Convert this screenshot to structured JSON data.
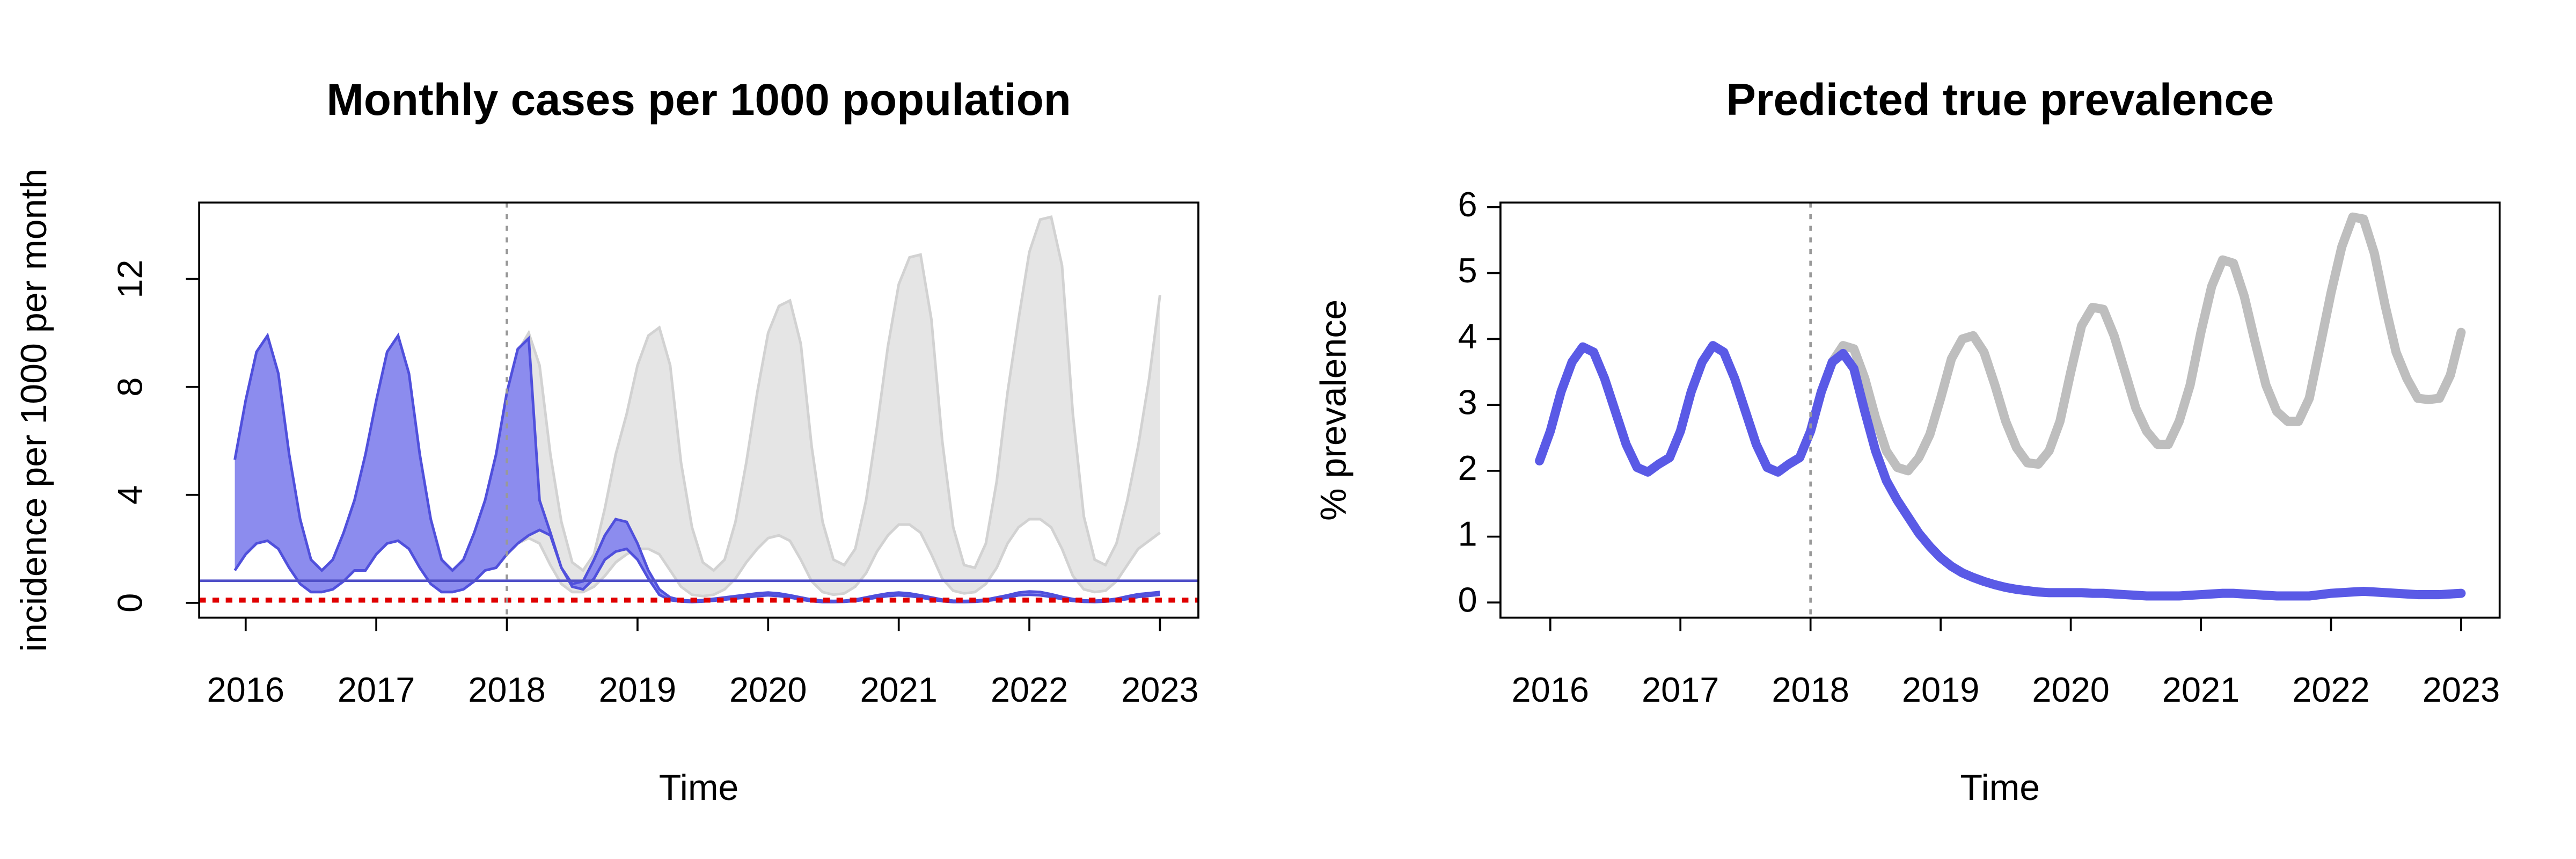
{
  "chart_data": [
    {
      "type": "band",
      "title": "Monthly cases per 1000 population",
      "xlabel": "Time",
      "ylabel": "incidence per 1000 per month",
      "x": [
        2015.917,
        2016,
        2016.083,
        2016.167,
        2016.25,
        2016.333,
        2016.417,
        2016.5,
        2016.583,
        2016.667,
        2016.75,
        2016.833,
        2016.917,
        2017,
        2017.083,
        2017.167,
        2017.25,
        2017.333,
        2017.417,
        2017.5,
        2017.583,
        2017.667,
        2017.75,
        2017.833,
        2017.917,
        2018,
        2018.083,
        2018.167,
        2018.25,
        2018.333,
        2018.417,
        2018.5,
        2018.583,
        2018.667,
        2018.75,
        2018.833,
        2018.917,
        2019,
        2019.083,
        2019.167,
        2019.25,
        2019.333,
        2019.417,
        2019.5,
        2019.583,
        2019.667,
        2019.75,
        2019.833,
        2019.917,
        2020,
        2020.083,
        2020.167,
        2020.25,
        2020.333,
        2020.417,
        2020.5,
        2020.583,
        2020.667,
        2020.75,
        2020.833,
        2020.917,
        2021,
        2021.083,
        2021.167,
        2021.25,
        2021.333,
        2021.417,
        2021.5,
        2021.583,
        2021.667,
        2021.75,
        2021.833,
        2021.917,
        2022,
        2022.083,
        2022.167,
        2022.25,
        2022.333,
        2022.417,
        2022.5,
        2022.583,
        2022.667,
        2022.75,
        2022.833,
        2022.917,
        2023
      ],
      "series": [
        {
          "color": "#e5e5e5",
          "edge_color": "#d2d2d2",
          "upper": [
            null,
            null,
            null,
            null,
            null,
            null,
            null,
            null,
            null,
            null,
            null,
            null,
            null,
            null,
            null,
            null,
            null,
            null,
            null,
            null,
            null,
            null,
            null,
            null,
            5.5,
            7.5,
            9.3,
            10.0,
            8.8,
            5.5,
            3.0,
            1.5,
            1.2,
            1.8,
            3.5,
            5.5,
            7.0,
            8.8,
            9.9,
            10.2,
            8.8,
            5.2,
            2.8,
            1.5,
            1.2,
            1.6,
            3.0,
            5.2,
            7.8,
            10.0,
            11.0,
            11.2,
            9.6,
            5.8,
            3.0,
            1.6,
            1.4,
            2.0,
            3.8,
            6.5,
            9.5,
            11.8,
            12.8,
            12.9,
            10.5,
            6.0,
            2.8,
            1.4,
            1.3,
            2.2,
            4.5,
            7.8,
            10.5,
            13.0,
            14.2,
            14.3,
            12.5,
            7.0,
            3.2,
            1.6,
            1.4,
            2.2,
            3.8,
            5.8,
            8.3,
            11.4
          ],
          "lower": [
            null,
            null,
            null,
            null,
            null,
            null,
            null,
            null,
            null,
            null,
            null,
            null,
            null,
            null,
            null,
            null,
            null,
            null,
            null,
            null,
            null,
            null,
            null,
            null,
            1.3,
            1.8,
            2.2,
            2.4,
            2.2,
            1.4,
            0.7,
            0.4,
            0.4,
            0.6,
            1.0,
            1.5,
            1.8,
            2.0,
            2.0,
            1.8,
            1.2,
            0.6,
            0.3,
            0.25,
            0.3,
            0.5,
            0.9,
            1.5,
            2.0,
            2.4,
            2.5,
            2.3,
            1.6,
            0.8,
            0.4,
            0.3,
            0.35,
            0.6,
            1.1,
            1.9,
            2.5,
            2.9,
            2.9,
            2.6,
            1.8,
            0.9,
            0.45,
            0.35,
            0.4,
            0.7,
            1.3,
            2.2,
            2.8,
            3.1,
            3.1,
            2.8,
            2.0,
            1.0,
            0.5,
            0.4,
            0.45,
            0.8,
            1.4,
            2.0,
            2.3,
            2.6
          ]
        },
        {
          "color": "#8c8cee",
          "edge_color": "#5050dc",
          "upper": [
            5.3,
            7.5,
            9.3,
            9.9,
            8.5,
            5.5,
            3.1,
            1.6,
            1.2,
            1.6,
            2.6,
            3.8,
            5.5,
            7.5,
            9.3,
            9.9,
            8.5,
            5.5,
            3.1,
            1.6,
            1.2,
            1.6,
            2.6,
            3.8,
            5.5,
            7.8,
            9.4,
            9.8,
            3.8,
            2.6,
            1.3,
            0.7,
            0.8,
            1.6,
            2.5,
            3.1,
            3.0,
            2.2,
            1.2,
            0.5,
            0.2,
            0.1,
            0.08,
            0.1,
            0.15,
            0.2,
            0.25,
            0.3,
            0.35,
            0.38,
            0.35,
            0.28,
            0.2,
            0.12,
            0.08,
            0.07,
            0.08,
            0.12,
            0.2,
            0.28,
            0.35,
            0.38,
            0.35,
            0.28,
            0.2,
            0.12,
            0.08,
            0.07,
            0.08,
            0.12,
            0.2,
            0.28,
            0.38,
            0.42,
            0.4,
            0.32,
            0.22,
            0.14,
            0.09,
            0.08,
            0.1,
            0.15,
            0.24,
            0.32,
            0.36,
            0.4
          ],
          "lower": [
            1.2,
            1.8,
            2.2,
            2.3,
            2.0,
            1.3,
            0.7,
            0.4,
            0.4,
            0.5,
            0.8,
            1.2,
            1.2,
            1.8,
            2.2,
            2.3,
            2.0,
            1.3,
            0.7,
            0.4,
            0.4,
            0.5,
            0.8,
            1.2,
            1.3,
            1.8,
            2.2,
            2.5,
            2.7,
            2.5,
            1.3,
            0.6,
            0.5,
            0.9,
            1.6,
            1.9,
            2.0,
            1.6,
            0.9,
            0.3,
            0.1,
            0.05,
            0.03,
            0.05,
            0.08,
            0.12,
            0.16,
            0.2,
            0.25,
            0.28,
            0.25,
            0.2,
            0.12,
            0.06,
            0.03,
            0.03,
            0.04,
            0.07,
            0.12,
            0.2,
            0.25,
            0.28,
            0.25,
            0.2,
            0.12,
            0.06,
            0.03,
            0.03,
            0.04,
            0.07,
            0.12,
            0.2,
            0.28,
            0.3,
            0.28,
            0.22,
            0.14,
            0.07,
            0.04,
            0.03,
            0.05,
            0.08,
            0.14,
            0.22,
            0.26,
            0.3
          ]
        }
      ],
      "hlines": [
        {
          "value": 0.82,
          "color": "#5050c8",
          "dashed": false
        },
        {
          "value": 0.1,
          "color": "#e00000",
          "dashed": true
        }
      ],
      "vline": 2018,
      "xlim": [
        2015.644,
        2023.294
      ],
      "ylim": [
        -0.55,
        14.83
      ],
      "xticks": [
        2016,
        2017,
        2018,
        2019,
        2020,
        2021,
        2022,
        2023
      ],
      "yticks": [
        0,
        4,
        8,
        12
      ]
    },
    {
      "type": "line",
      "title": "Predicted true prevalence",
      "xlabel": "Time",
      "ylabel": "% prevalence",
      "x": [
        2015.917,
        2016,
        2016.083,
        2016.167,
        2016.25,
        2016.333,
        2016.417,
        2016.5,
        2016.583,
        2016.667,
        2016.75,
        2016.833,
        2016.917,
        2017,
        2017.083,
        2017.167,
        2017.25,
        2017.333,
        2017.417,
        2017.5,
        2017.583,
        2017.667,
        2017.75,
        2017.833,
        2017.917,
        2018,
        2018.083,
        2018.167,
        2018.25,
        2018.333,
        2018.417,
        2018.5,
        2018.583,
        2018.667,
        2018.75,
        2018.833,
        2018.917,
        2019,
        2019.083,
        2019.167,
        2019.25,
        2019.333,
        2019.417,
        2019.5,
        2019.583,
        2019.667,
        2019.75,
        2019.833,
        2019.917,
        2020,
        2020.083,
        2020.167,
        2020.25,
        2020.333,
        2020.417,
        2020.5,
        2020.583,
        2020.667,
        2020.75,
        2020.833,
        2020.917,
        2021,
        2021.083,
        2021.167,
        2021.25,
        2021.333,
        2021.417,
        2021.5,
        2021.583,
        2021.667,
        2021.75,
        2021.833,
        2021.917,
        2022,
        2022.083,
        2022.167,
        2022.25,
        2022.333,
        2022.417,
        2022.5,
        2022.583,
        2022.667,
        2022.75,
        2022.833,
        2022.917,
        2023
      ],
      "series": [
        {
          "color": "#bebebe",
          "values": [
            null,
            null,
            null,
            null,
            null,
            null,
            null,
            null,
            null,
            null,
            null,
            null,
            null,
            null,
            null,
            null,
            null,
            null,
            null,
            null,
            null,
            null,
            null,
            null,
            2.2,
            2.6,
            3.2,
            3.65,
            3.9,
            3.85,
            3.4,
            2.8,
            2.3,
            2.05,
            2.0,
            2.2,
            2.55,
            3.1,
            3.7,
            4.0,
            4.05,
            3.8,
            3.3,
            2.75,
            2.35,
            2.12,
            2.1,
            2.3,
            2.75,
            3.5,
            4.2,
            4.48,
            4.45,
            4.05,
            3.5,
            2.95,
            2.6,
            2.4,
            2.4,
            2.75,
            3.3,
            4.1,
            4.8,
            5.2,
            5.15,
            4.65,
            3.95,
            3.3,
            2.9,
            2.75,
            2.75,
            3.1,
            3.9,
            4.7,
            5.4,
            5.85,
            5.82,
            5.3,
            4.5,
            3.8,
            3.4,
            3.1,
            3.08,
            3.1,
            3.45,
            4.1
          ]
        },
        {
          "color": "#5a5ae6",
          "values": [
            2.15,
            2.6,
            3.2,
            3.65,
            3.88,
            3.8,
            3.4,
            2.9,
            2.4,
            2.05,
            1.98,
            2.1,
            2.2,
            2.6,
            3.2,
            3.65,
            3.9,
            3.8,
            3.4,
            2.9,
            2.4,
            2.05,
            1.98,
            2.1,
            2.2,
            2.6,
            3.2,
            3.65,
            3.78,
            3.55,
            2.9,
            2.3,
            1.85,
            1.55,
            1.3,
            1.05,
            0.85,
            0.68,
            0.55,
            0.45,
            0.38,
            0.32,
            0.27,
            0.23,
            0.2,
            0.18,
            0.16,
            0.15,
            0.15,
            0.15,
            0.15,
            0.14,
            0.14,
            0.13,
            0.12,
            0.11,
            0.1,
            0.1,
            0.1,
            0.1,
            0.11,
            0.12,
            0.13,
            0.14,
            0.14,
            0.13,
            0.12,
            0.11,
            0.1,
            0.1,
            0.1,
            0.1,
            0.12,
            0.14,
            0.15,
            0.16,
            0.17,
            0.16,
            0.15,
            0.14,
            0.13,
            0.12,
            0.12,
            0.12,
            0.13,
            0.14
          ]
        }
      ],
      "vline": 2018,
      "xlim": [
        2015.617,
        2023.296
      ],
      "ylim": [
        -0.23,
        6.07
      ],
      "xticks": [
        2016,
        2017,
        2018,
        2019,
        2020,
        2021,
        2022,
        2023
      ],
      "yticks": [
        0,
        1,
        2,
        3,
        4,
        5,
        6
      ]
    }
  ]
}
